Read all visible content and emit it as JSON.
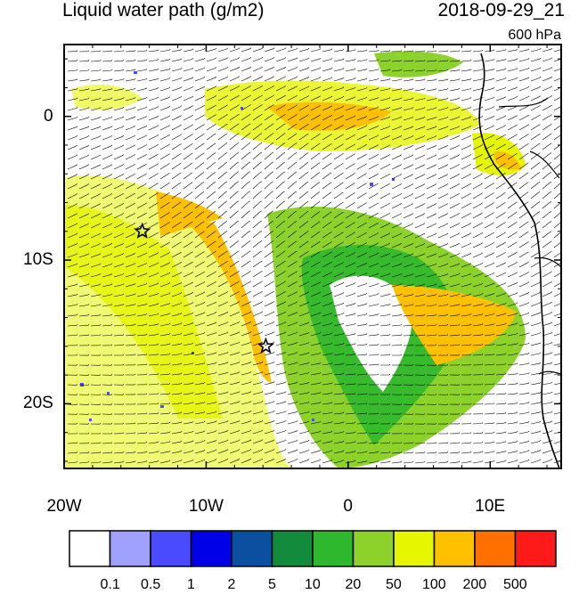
{
  "title": "Liquid water path (g/m2)",
  "datetime": "2018-09-29_21",
  "level": "600 hPa",
  "x_ticks": [
    {
      "label": "20W",
      "lon": -20
    },
    {
      "label": "10W",
      "lon": -10
    },
    {
      "label": "0",
      "lon": 0
    },
    {
      "label": "10E",
      "lon": 10
    }
  ],
  "y_ticks": [
    {
      "label": "0",
      "lat": 0
    },
    {
      "label": "10S",
      "lat": -10
    },
    {
      "label": "20S",
      "lat": -20
    }
  ],
  "map_extent": {
    "lon": [
      -20,
      15
    ],
    "lat": [
      -24.5,
      5
    ]
  },
  "markers": [
    {
      "name": "star-marker",
      "lon": -14.5,
      "lat": -8
    },
    {
      "name": "star-marker",
      "lon": -5.8,
      "lat": -16
    }
  ],
  "colorbar": {
    "colors": [
      "#ffffff",
      "#a0a0ff",
      "#4a4aff",
      "#0000e6",
      "#0a4fa0",
      "#128c3c",
      "#2eb82e",
      "#8cd22a",
      "#e6f500",
      "#ffc000",
      "#ff7000",
      "#ff1a1a"
    ],
    "labels": [
      "0.1",
      "0.5",
      "1",
      "2",
      "5",
      "10",
      "20",
      "50",
      "100",
      "200",
      "500"
    ]
  }
}
